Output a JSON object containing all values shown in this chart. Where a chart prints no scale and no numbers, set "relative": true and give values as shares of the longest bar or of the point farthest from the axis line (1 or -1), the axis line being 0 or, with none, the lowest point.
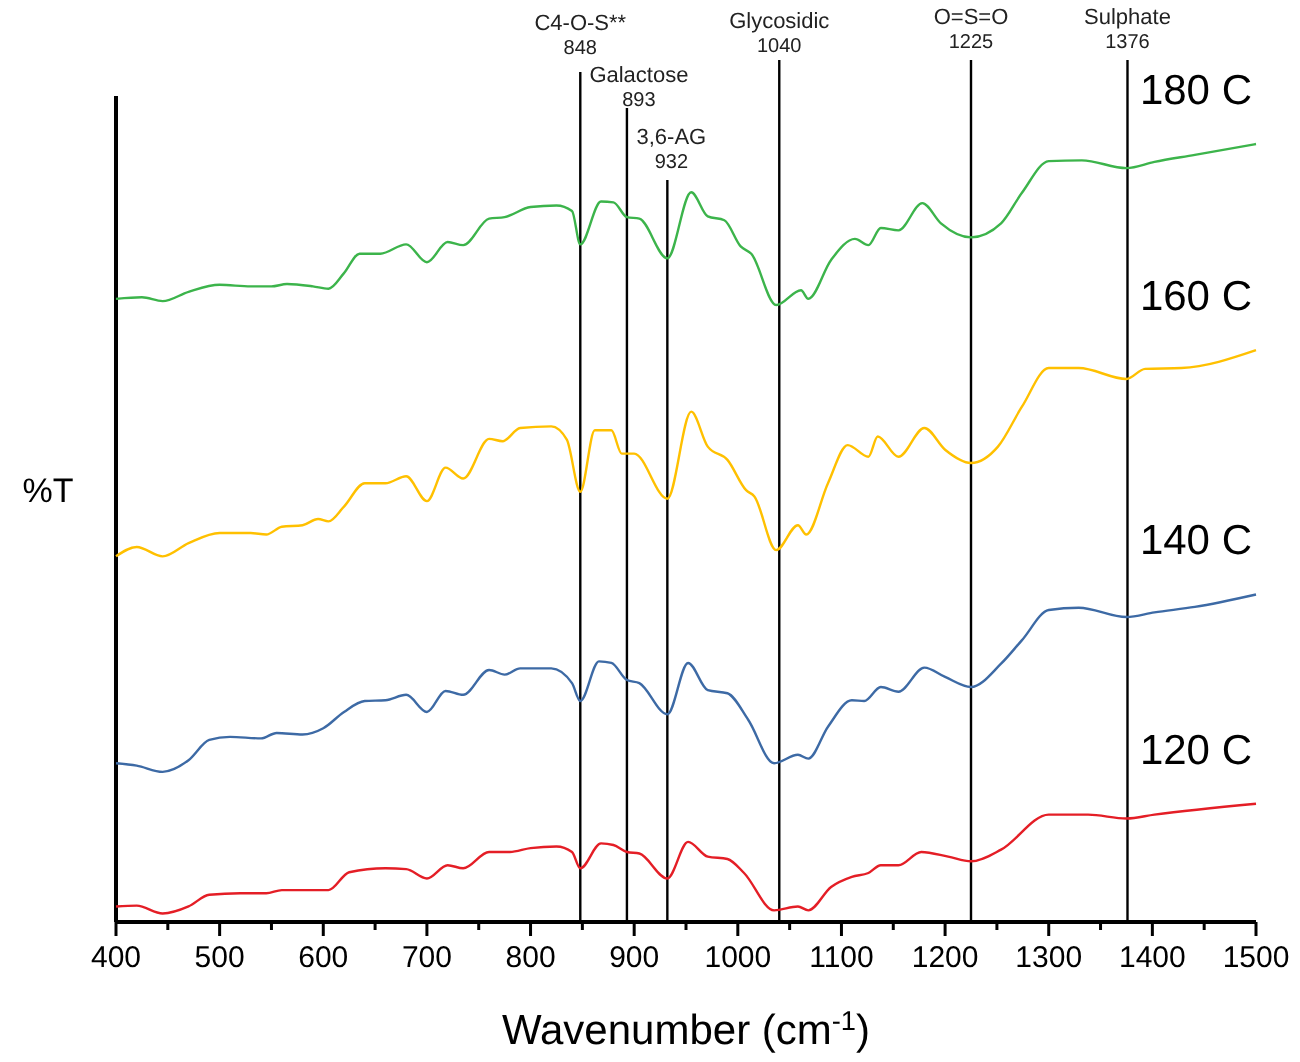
{
  "chart_data": {
    "type": "line",
    "relative": true,
    "xlabel": "Wavenumber (cm$^{-1}$)",
    "ylabel": "%T",
    "xlim": [
      400,
      1500
    ],
    "xticks": [
      400,
      {
        "value": 450,
        "label": null
      },
      500,
      {
        "value": 550,
        "label": null
      },
      600,
      {
        "value": 650,
        "label": null
      },
      700,
      {
        "value": 750,
        "label": null
      },
      800,
      {
        "value": 850,
        "label": null
      },
      900,
      {
        "value": 950,
        "label": null
      },
      1000,
      {
        "value": 1050,
        "label": null
      },
      1100,
      {
        "value": 1150,
        "label": null
      },
      1200,
      {
        "value": 1250,
        "label": null
      },
      1300,
      {
        "value": 1350,
        "label": null
      },
      1400,
      {
        "value": 1450,
        "label": null
      },
      1500
    ],
    "grid": false,
    "legend": false,
    "marker": "none",
    "line_style": "solid",
    "series": [
      {
        "name": "180 C",
        "color": "#3cb44b",
        "x": [
          400,
          425,
          445,
          470,
          500,
          530,
          550,
          565,
          590,
          605,
          620,
          635,
          655,
          680,
          700,
          720,
          735,
          760,
          775,
          800,
          825,
          840,
          848,
          868,
          880,
          893,
          905,
          932,
          955,
          971,
          987,
          1003,
          1013,
          1037,
          1061,
          1068,
          1090,
          1113,
          1126,
          1138,
          1155,
          1178,
          1196,
          1225,
          1254,
          1274,
          1300,
          1332,
          1375,
          1402,
          1441,
          1500
        ],
        "values": [
          0.801,
          0.803,
          0.798,
          0.81,
          0.819,
          0.817,
          0.817,
          0.82,
          0.817,
          0.814,
          0.834,
          0.859,
          0.859,
          0.871,
          0.848,
          0.874,
          0.87,
          0.904,
          0.906,
          0.919,
          0.921,
          0.914,
          0.871,
          0.926,
          0.925,
          0.906,
          0.904,
          0.853,
          0.938,
          0.907,
          0.902,
          0.868,
          0.859,
          0.793,
          0.812,
          0.801,
          0.851,
          0.878,
          0.87,
          0.892,
          0.889,
          0.924,
          0.898,
          0.88,
          0.898,
          0.937,
          0.978,
          0.979,
          0.969,
          0.977,
          0.986,
          1
        ]
      },
      {
        "name": "160 C",
        "color": "#ffc000",
        "x": [
          400,
          420,
          445,
          470,
          500,
          530,
          545,
          560,
          580,
          595,
          605,
          620,
          640,
          660,
          680,
          700,
          718,
          735,
          760,
          773,
          790,
          820,
          835,
          848,
          862,
          878,
          888,
          900,
          932,
          955,
          971,
          990,
          1008,
          1016,
          1037,
          1058,
          1066,
          1087,
          1106,
          1126,
          1135,
          1155,
          1180,
          1200,
          1225,
          1251,
          1274,
          1300,
          1329,
          1375,
          1393,
          1428,
          1500
        ],
        "values": [
          0.47,
          0.482,
          0.47,
          0.487,
          0.5,
          0.5,
          0.498,
          0.508,
          0.51,
          0.518,
          0.515,
          0.534,
          0.564,
          0.564,
          0.573,
          0.541,
          0.584,
          0.57,
          0.621,
          0.618,
          0.635,
          0.637,
          0.62,
          0.553,
          0.632,
          0.632,
          0.602,
          0.602,
          0.544,
          0.656,
          0.611,
          0.594,
          0.555,
          0.547,
          0.478,
          0.51,
          0.498,
          0.564,
          0.613,
          0.598,
          0.624,
          0.598,
          0.635,
          0.607,
          0.59,
          0.611,
          0.662,
          0.712,
          0.712,
          0.698,
          0.711,
          0.712,
          0.735
        ]
      },
      {
        "name": "140 C",
        "color": "#3d6aa5",
        "x": [
          400,
          420,
          445,
          470,
          490,
          510,
          540,
          555,
          580,
          600,
          620,
          640,
          660,
          680,
          700,
          718,
          735,
          760,
          775,
          790,
          820,
          840,
          848,
          866,
          878,
          893,
          905,
          932,
          952,
          971,
          990,
          1010,
          1035,
          1058,
          1068,
          1087,
          1110,
          1122,
          1138,
          1155,
          1180,
          1200,
          1225,
          1254,
          1274,
          1300,
          1329,
          1375,
          1402,
          1441,
          1500
        ],
        "values": [
          0.204,
          0.201,
          0.193,
          0.208,
          0.234,
          0.238,
          0.236,
          0.243,
          0.241,
          0.249,
          0.27,
          0.284,
          0.285,
          0.292,
          0.27,
          0.297,
          0.292,
          0.324,
          0.318,
          0.326,
          0.326,
          0.307,
          0.284,
          0.335,
          0.333,
          0.311,
          0.307,
          0.267,
          0.333,
          0.298,
          0.294,
          0.26,
          0.204,
          0.215,
          0.21,
          0.251,
          0.285,
          0.284,
          0.302,
          0.296,
          0.327,
          0.315,
          0.302,
          0.332,
          0.362,
          0.401,
          0.404,
          0.392,
          0.398,
          0.405,
          0.421
        ]
      },
      {
        "name": "120 C",
        "color": "#e41e26",
        "x": [
          400,
          420,
          445,
          470,
          490,
          520,
          545,
          560,
          590,
          605,
          625,
          660,
          680,
          700,
          720,
          735,
          760,
          780,
          800,
          825,
          840,
          848,
          868,
          880,
          893,
          905,
          932,
          952,
          971,
          990,
          1006,
          1035,
          1058,
          1068,
          1090,
          1110,
          1126,
          1138,
          1155,
          1177,
          1203,
          1225,
          1254,
          1300,
          1338,
          1375,
          1402,
          1500
        ],
        "values": [
          0.02,
          0.021,
          0.011,
          0.02,
          0.035,
          0.037,
          0.037,
          0.041,
          0.041,
          0.041,
          0.064,
          0.069,
          0.068,
          0.056,
          0.073,
          0.069,
          0.09,
          0.09,
          0.095,
          0.097,
          0.09,
          0.069,
          0.101,
          0.099,
          0.09,
          0.088,
          0.056,
          0.103,
          0.084,
          0.081,
          0.063,
          0.015,
          0.02,
          0.015,
          0.045,
          0.058,
          0.063,
          0.073,
          0.073,
          0.09,
          0.084,
          0.078,
          0.093,
          0.138,
          0.138,
          0.133,
          0.138,
          0.152
        ]
      }
    ],
    "ref_lines": [
      {
        "axis": "x",
        "value": 848,
        "label": "C4-O-S**\n848",
        "color": "#000000"
      },
      {
        "axis": "x",
        "value": 893,
        "label": "Galactose\n893",
        "color": "#000000"
      },
      {
        "axis": "x",
        "value": 932,
        "label": "3,6-AG\n932",
        "color": "#000000"
      },
      {
        "axis": "x",
        "value": 1040,
        "label": "Glycosidic\n1040",
        "color": "#000000"
      },
      {
        "axis": "x",
        "value": 1225,
        "label": "O=S=O\n1225",
        "color": "#000000"
      },
      {
        "axis": "x",
        "value": 1376,
        "label": "Sulphate\n1376",
        "color": "#000000"
      }
    ]
  }
}
